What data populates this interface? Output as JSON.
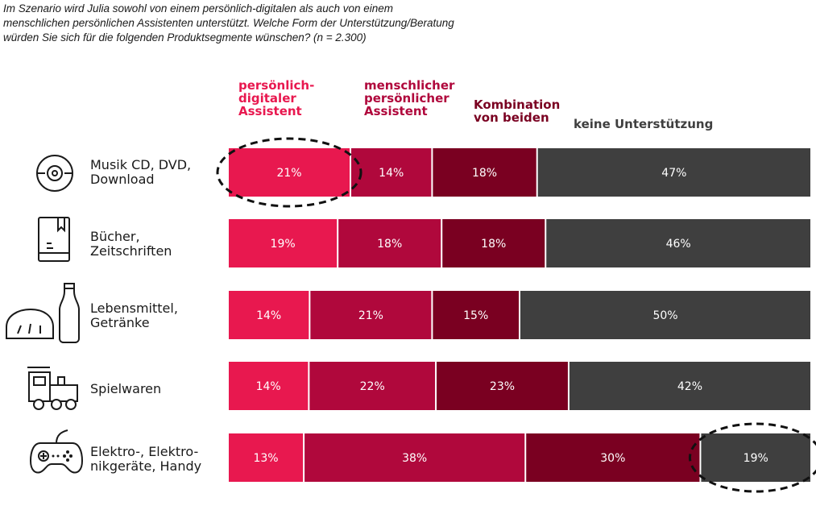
{
  "chart_data": {
    "type": "bar",
    "orientation": "horizontal",
    "stacked": true,
    "title": "Im Szenario wird Julia sowohl von einem persönlich-digitalen als auch von einem menschlichen persönlichen Assistenten unterstützt. Welche Form der Unterstützung/Beratung würden Sie sich für die folgenden Produktsegmente wünschen? (n = 2.300)",
    "title_lines": [
      "Im Szenario wird Julia sowohl von einem persönlich-digitalen als auch von einem",
      "menschlichen persönlichen Assistenten unterstützt. Welche Form der Unterstützung/Beratung",
      "würden Sie sich für die folgenden Produktsegmente wünschen? (n = 2.300)"
    ],
    "categories": [
      "Musik CD, DVD,\nDownload",
      "Bücher,\nZeitschriften",
      "Lebensmittel,\nGetränke",
      "Spielwaren",
      "Elektro-, Elektro-\nnikgeräte, Handy"
    ],
    "series": [
      {
        "name": "persönlich-\ndigitaler\nAssistent",
        "color": "#e8184f",
        "values": [
          21,
          19,
          14,
          14,
          13
        ]
      },
      {
        "name": "menschlicher\npersönlicher\nAssistent",
        "color": "#b0083c",
        "values": [
          14,
          18,
          21,
          22,
          38
        ]
      },
      {
        "name": "Kombination\nvon beiden",
        "color": "#7a0021",
        "values": [
          18,
          18,
          15,
          23,
          30
        ]
      },
      {
        "name": "keine Unterstützung",
        "color": "#3f3f3f",
        "values": [
          47,
          46,
          50,
          42,
          19
        ]
      }
    ],
    "value_suffix": "%",
    "xlim": [
      0,
      100
    ],
    "highlights": [
      {
        "category": 0,
        "series": 0
      },
      {
        "category": 4,
        "series": 3
      }
    ]
  },
  "icons": [
    "disc-icon",
    "book-icon",
    "bread-bottle-icon",
    "toy-train-icon",
    "gamepad-icon"
  ]
}
